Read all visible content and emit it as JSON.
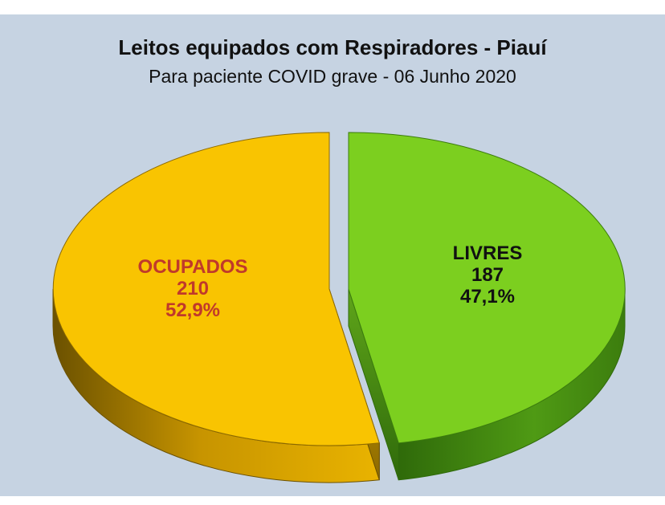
{
  "chart_data": {
    "type": "pie",
    "title": "Leitos equipados com Respiradores - Piauí",
    "subtitle": "Para paciente COVID grave - 06 Junho 2020",
    "slices": [
      {
        "label": "OCUPADOS",
        "value": 210,
        "percent_text": "52,9%",
        "color": "#f9c401",
        "label_color": "#c0392b"
      },
      {
        "label": "LIVRES",
        "value": 187,
        "percent_text": "47,1%",
        "color": "#7ccf1f",
        "label_color": "#111111"
      }
    ],
    "background_color": "#c6d3e2"
  }
}
